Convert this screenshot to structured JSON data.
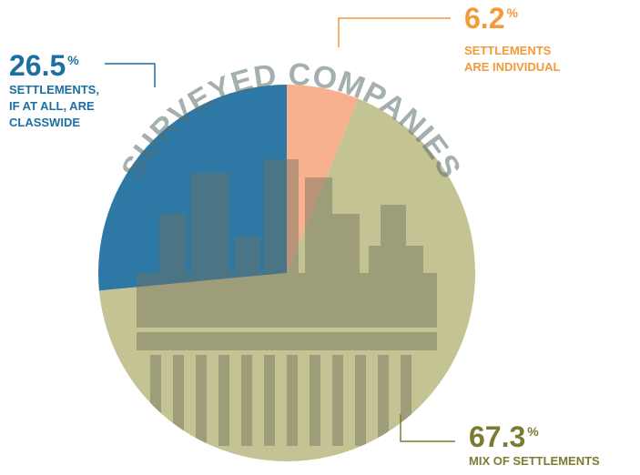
{
  "chart_data": {
    "type": "pie",
    "title": "SURVEYED COMPANIES",
    "unit": "%",
    "categories": [
      [
        "SETTLEMENTS,",
        "IF AT ALL, ARE",
        "CLASSWIDE"
      ],
      [
        "SETTLEMENTS",
        "ARE INDIVIDUAL"
      ],
      [
        "MIX OF SETTLEMENTS"
      ]
    ],
    "values": [
      26.5,
      6.2,
      67.3
    ],
    "colors": [
      "#2e78a6",
      "#f8b08e",
      "#c4c393"
    ],
    "label_colors": [
      "#1b6fa3",
      "#f39a3b",
      "#7d7b32"
    ]
  }
}
